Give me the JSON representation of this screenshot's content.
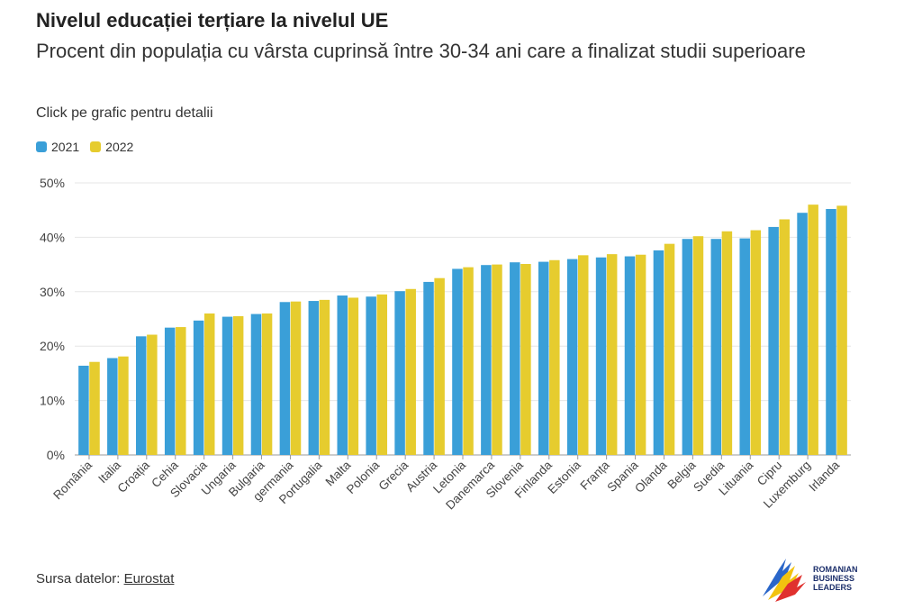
{
  "title": "Nivelul educației terțiare la nivelul UE",
  "subtitle": "Procent din populația cu vârsta cuprinsă între 30-34 ani care a finalizat studii superioare",
  "hint": "Click pe grafic pentru detalii",
  "source": {
    "label": "Sursa datelor:",
    "link": "Eurostat"
  },
  "logo": {
    "line1": "ROMANIAN",
    "line2": "BUSINESS",
    "line3": "LEADERS"
  },
  "colors": {
    "series2021": "#3a9fd8",
    "series2022": "#e6cc2e",
    "grid": "#e6e6e6",
    "axis": "#555555"
  },
  "chart_data": {
    "type": "bar",
    "title": "",
    "xlabel": "",
    "ylabel": "",
    "ylim": [
      0,
      50
    ],
    "yticks": [
      "0%",
      "10%",
      "20%",
      "30%",
      "40%",
      "50%"
    ],
    "legend_position": "top-left",
    "grid": true,
    "categories": [
      "România",
      "Italia",
      "Croația",
      "Cehia",
      "Slovacia",
      "Ungaria",
      "Bulgaria",
      "germania",
      "Portugalia",
      "Malta",
      "Polonia",
      "Grecia",
      "Austria",
      "Letonia",
      "Danemarca",
      "Slovenia",
      "Finlanda",
      "Estonia",
      "Franța",
      "Spania",
      "Olanda",
      "Belgia",
      "Suedia",
      "Lituania",
      "Cipru",
      "Luxemburg",
      "Irlanda"
    ],
    "series": [
      {
        "name": "2021",
        "values": [
          16.4,
          17.8,
          21.8,
          23.4,
          24.7,
          25.4,
          25.9,
          28.1,
          28.3,
          29.3,
          29.1,
          30.1,
          31.8,
          34.2,
          34.9,
          35.4,
          35.5,
          36.0,
          36.3,
          36.5,
          37.6,
          39.7,
          39.7,
          39.8,
          41.9,
          44.5,
          45.2
        ]
      },
      {
        "name": "2022",
        "values": [
          17.1,
          18.1,
          22.1,
          23.5,
          26.0,
          25.5,
          26.0,
          28.2,
          28.5,
          28.9,
          29.5,
          30.5,
          32.5,
          34.5,
          35.0,
          35.1,
          35.8,
          36.7,
          36.9,
          36.8,
          38.8,
          40.2,
          41.1,
          41.3,
          43.3,
          46.0,
          45.8
        ]
      }
    ]
  }
}
